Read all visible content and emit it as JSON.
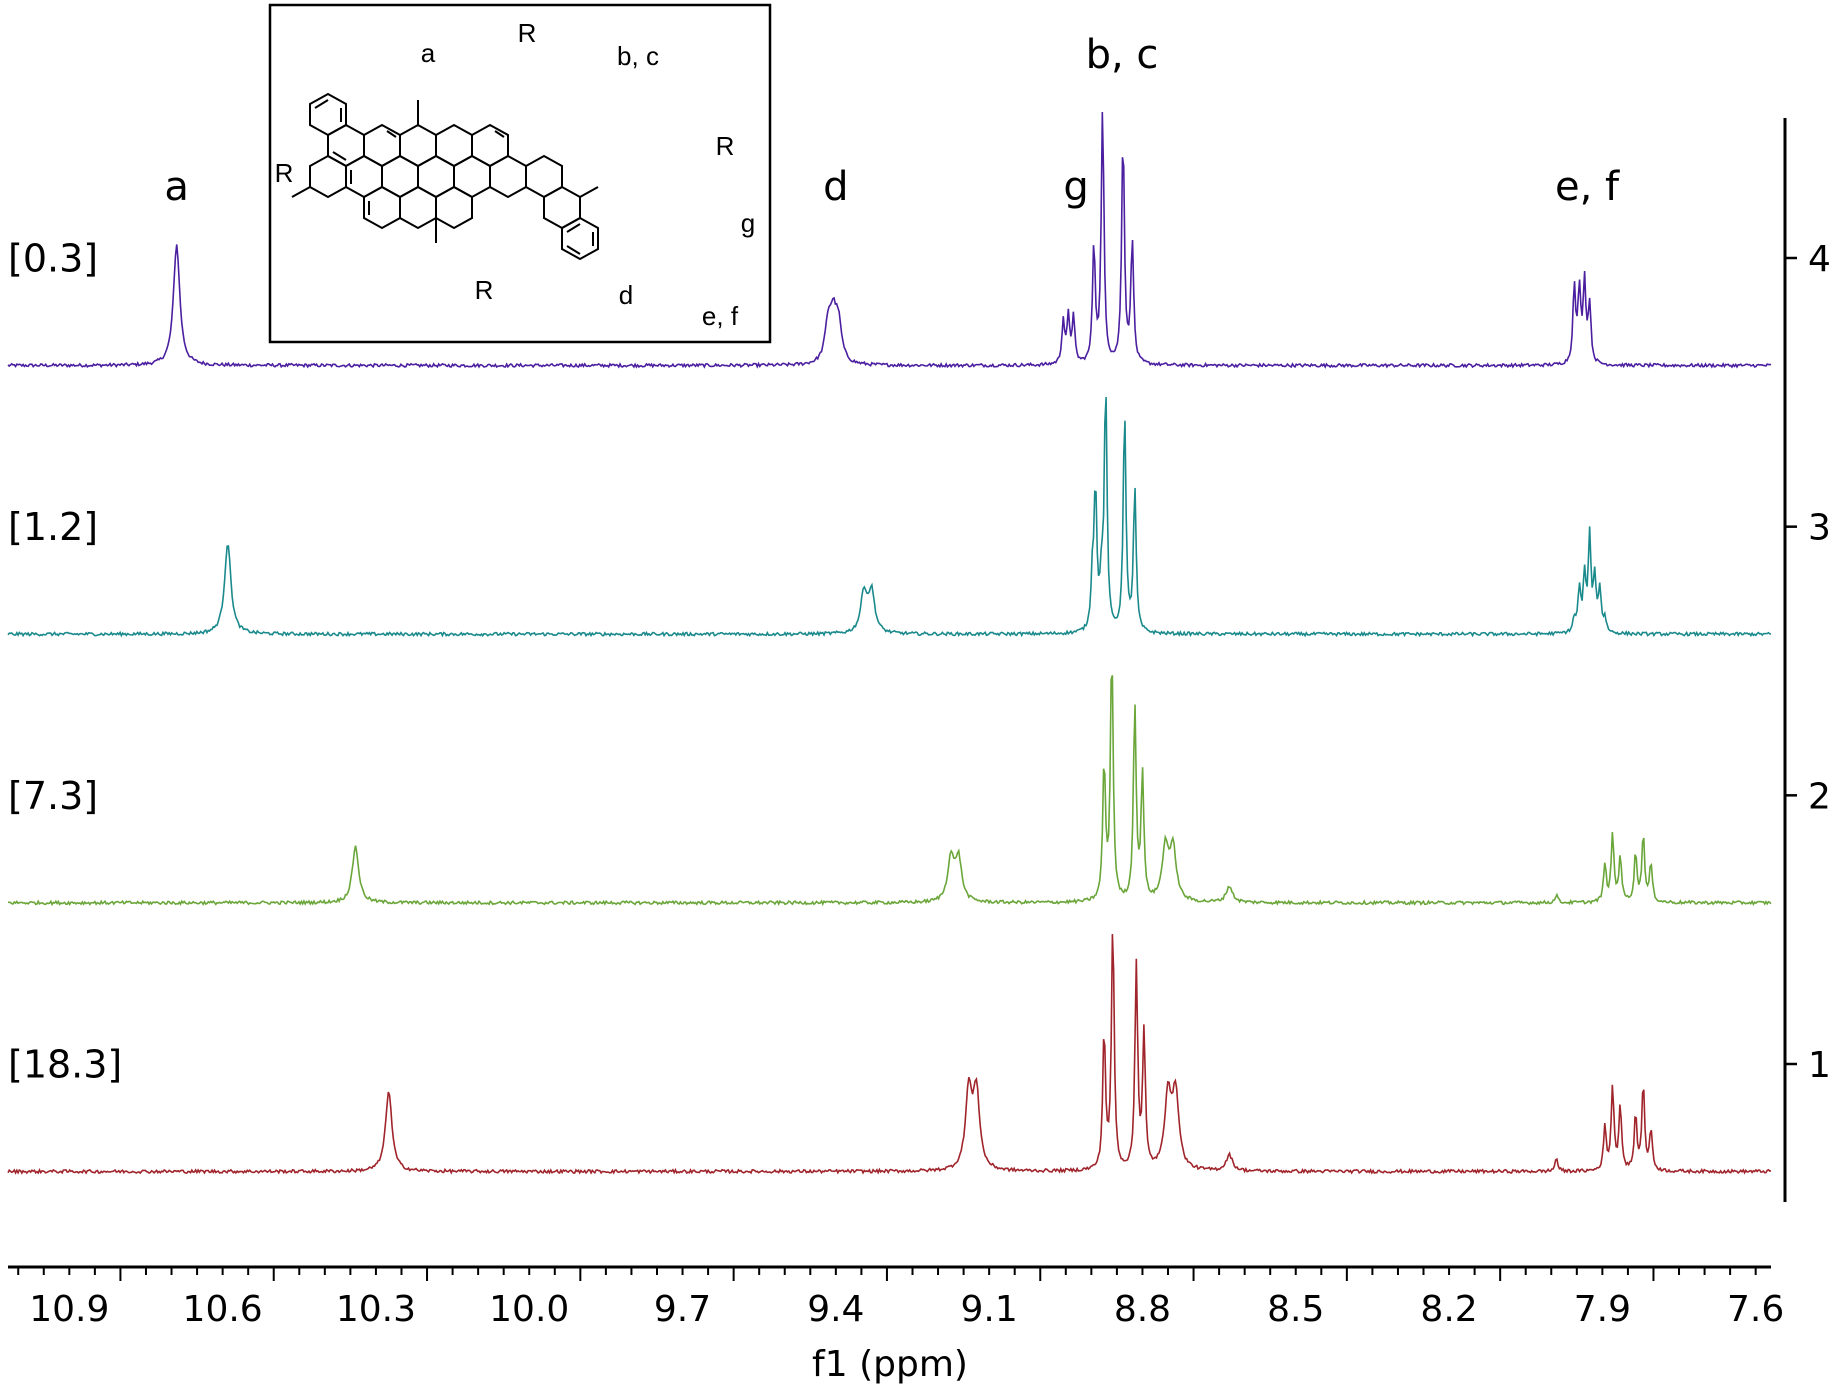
{
  "chart_data": {
    "type": "line",
    "title": "",
    "xlabel": "f1 (ppm)",
    "ylabel": "",
    "x_reversed": true,
    "xlim": [
      11.02,
      7.57
    ],
    "x_ticks": [
      "10.9",
      "10.6",
      "10.3",
      "10.0",
      "9.7",
      "9.4",
      "9.1",
      "8.8",
      "8.5",
      "8.2",
      "7.9",
      "7.6"
    ],
    "ylim": [
      0.55,
      4.5
    ],
    "y_ticks": [
      "1",
      "2",
      "3",
      "4"
    ],
    "peak_labels": [
      {
        "text": "a",
        "ppm": 10.69
      },
      {
        "text": "d",
        "ppm": 9.4
      },
      {
        "text": "g",
        "ppm": 8.93
      },
      {
        "text": "b, c",
        "ppm": 8.84
      },
      {
        "text": "e, f",
        "ppm": 7.93
      }
    ],
    "series": [
      {
        "name": "[0.3]",
        "color": "#4b1fa0",
        "baseline": 3.6,
        "peaks": [
          {
            "ppm": 10.69,
            "h": 0.45
          },
          {
            "ppm": 9.415,
            "h": 0.14
          },
          {
            "ppm": 9.405,
            "h": 0.15
          },
          {
            "ppm": 9.395,
            "h": 0.14
          },
          {
            "ppm": 8.955,
            "h": 0.16
          },
          {
            "ppm": 8.945,
            "h": 0.17
          },
          {
            "ppm": 8.935,
            "h": 0.17
          },
          {
            "ppm": 8.895,
            "h": 0.44
          },
          {
            "ppm": 8.878,
            "h": 0.94
          },
          {
            "ppm": 8.838,
            "h": 0.85
          },
          {
            "ppm": 8.82,
            "h": 0.46
          },
          {
            "ppm": 7.955,
            "h": 0.28
          },
          {
            "ppm": 7.945,
            "h": 0.27
          },
          {
            "ppm": 7.935,
            "h": 0.3
          },
          {
            "ppm": 7.925,
            "h": 0.22
          }
        ]
      },
      {
        "name": "[1.2]",
        "color": "#1b8a8c",
        "baseline": 2.6,
        "peaks": [
          {
            "ppm": 10.59,
            "h": 0.34
          },
          {
            "ppm": 9.345,
            "h": 0.15
          },
          {
            "ppm": 9.33,
            "h": 0.15
          },
          {
            "ppm": 8.898,
            "h": 0.18
          },
          {
            "ppm": 8.892,
            "h": 0.52
          },
          {
            "ppm": 8.88,
            "h": 0.18
          },
          {
            "ppm": 8.872,
            "h": 0.9
          },
          {
            "ppm": 8.835,
            "h": 0.82
          },
          {
            "ppm": 8.815,
            "h": 0.53
          },
          {
            "ppm": 7.955,
            "h": 0.05
          },
          {
            "ppm": 7.945,
            "h": 0.16
          },
          {
            "ppm": 7.935,
            "h": 0.2
          },
          {
            "ppm": 7.925,
            "h": 0.35
          },
          {
            "ppm": 7.915,
            "h": 0.2
          },
          {
            "ppm": 7.905,
            "h": 0.16
          },
          {
            "ppm": 7.895,
            "h": 0.05
          }
        ]
      },
      {
        "name": "[7.3]",
        "color": "#6aa63a",
        "baseline": 1.6,
        "peaks": [
          {
            "ppm": 10.34,
            "h": 0.21
          },
          {
            "ppm": 9.175,
            "h": 0.16
          },
          {
            "ppm": 9.16,
            "h": 0.16
          },
          {
            "ppm": 8.875,
            "h": 0.51
          },
          {
            "ppm": 8.86,
            "h": 0.93
          },
          {
            "ppm": 8.815,
            "h": 0.73
          },
          {
            "ppm": 8.8,
            "h": 0.47
          },
          {
            "ppm": 8.755,
            "h": 0.2
          },
          {
            "ppm": 8.74,
            "h": 0.19
          },
          {
            "ppm": 8.63,
            "h": 0.06
          },
          {
            "ppm": 7.99,
            "h": 0.03
          },
          {
            "ppm": 7.895,
            "h": 0.14
          },
          {
            "ppm": 7.88,
            "h": 0.25
          },
          {
            "ppm": 7.865,
            "h": 0.17
          },
          {
            "ppm": 7.835,
            "h": 0.18
          },
          {
            "ppm": 7.82,
            "h": 0.25
          },
          {
            "ppm": 7.805,
            "h": 0.14
          }
        ]
      },
      {
        "name": "[18.3]",
        "color": "#a0242b",
        "baseline": 0.6,
        "peaks": [
          {
            "ppm": 10.275,
            "h": 0.3
          },
          {
            "ppm": 9.14,
            "h": 0.29
          },
          {
            "ppm": 9.125,
            "h": 0.29
          },
          {
            "ppm": 8.875,
            "h": 0.51
          },
          {
            "ppm": 8.858,
            "h": 0.91
          },
          {
            "ppm": 8.812,
            "h": 0.76
          },
          {
            "ppm": 8.797,
            "h": 0.5
          },
          {
            "ppm": 8.75,
            "h": 0.28
          },
          {
            "ppm": 8.735,
            "h": 0.28
          },
          {
            "ppm": 8.63,
            "h": 0.06
          },
          {
            "ppm": 7.99,
            "h": 0.05
          },
          {
            "ppm": 7.895,
            "h": 0.16
          },
          {
            "ppm": 7.88,
            "h": 0.31
          },
          {
            "ppm": 7.865,
            "h": 0.24
          },
          {
            "ppm": 7.835,
            "h": 0.2
          },
          {
            "ppm": 7.82,
            "h": 0.32
          },
          {
            "ppm": 7.805,
            "h": 0.15
          }
        ]
      }
    ]
  },
  "inset": {
    "labels": {
      "a": "a",
      "bc": "b, c",
      "d": "d",
      "ef": "e, f",
      "g": "g",
      "r": "R"
    }
  }
}
